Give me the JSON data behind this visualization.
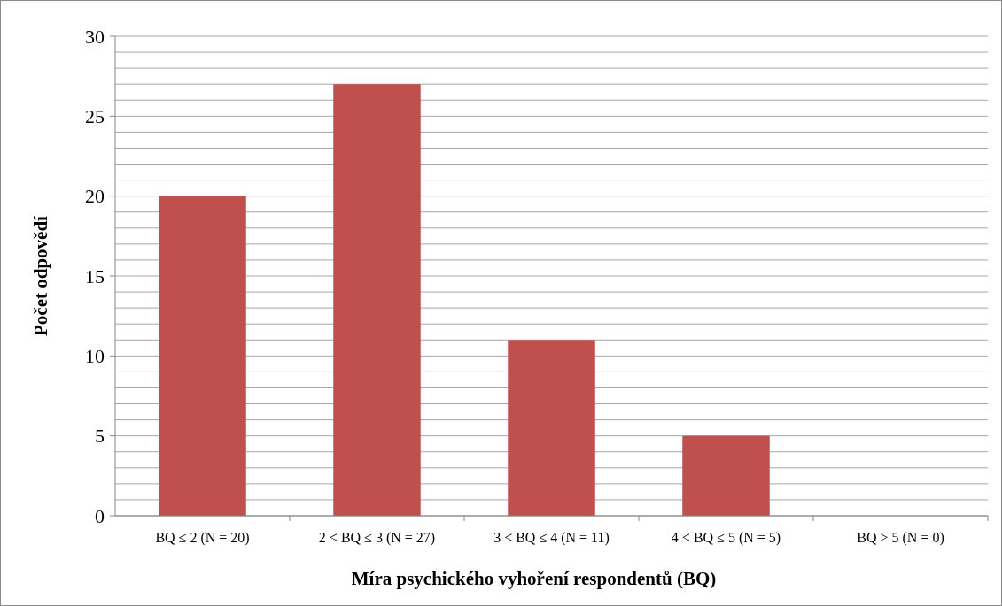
{
  "chart_data": {
    "type": "bar",
    "xlabel": "Míra psychického vyhoření respondentů (BQ)",
    "ylabel": "Počet odpovědí",
    "categories": [
      "BQ ≤ 2 (N = 20)",
      "2 < BQ ≤ 3 (N = 27)",
      "3 < BQ ≤ 4 (N = 11)",
      "4 < BQ ≤ 5 (N = 5)",
      "BQ > 5 (N = 0)"
    ],
    "values": [
      20,
      27,
      11,
      5,
      0
    ],
    "color": "#c0504d",
    "ylim": [
      0,
      30
    ],
    "yticks": [
      0,
      {
        "value": 1,
        "label": null
      },
      {
        "value": 2,
        "label": null
      },
      {
        "value": 3,
        "label": null
      },
      {
        "value": 4,
        "label": null
      },
      5,
      {
        "value": 6,
        "label": null
      },
      {
        "value": 7,
        "label": null
      },
      {
        "value": 8,
        "label": null
      },
      {
        "value": 9,
        "label": null
      },
      10,
      {
        "value": 11,
        "label": null
      },
      {
        "value": 12,
        "label": null
      },
      {
        "value": 13,
        "label": null
      },
      {
        "value": 14,
        "label": null
      },
      15,
      {
        "value": 16,
        "label": null
      },
      {
        "value": 17,
        "label": null
      },
      {
        "value": 18,
        "label": null
      },
      {
        "value": 19,
        "label": null
      },
      20,
      {
        "value": 21,
        "label": null
      },
      {
        "value": 22,
        "label": null
      },
      {
        "value": 23,
        "label": null
      },
      {
        "value": 24,
        "label": null
      },
      25,
      {
        "value": 26,
        "label": null
      },
      {
        "value": 27,
        "label": null
      },
      {
        "value": 28,
        "label": null
      },
      {
        "value": 29,
        "label": null
      },
      30
    ],
    "grid": true
  }
}
